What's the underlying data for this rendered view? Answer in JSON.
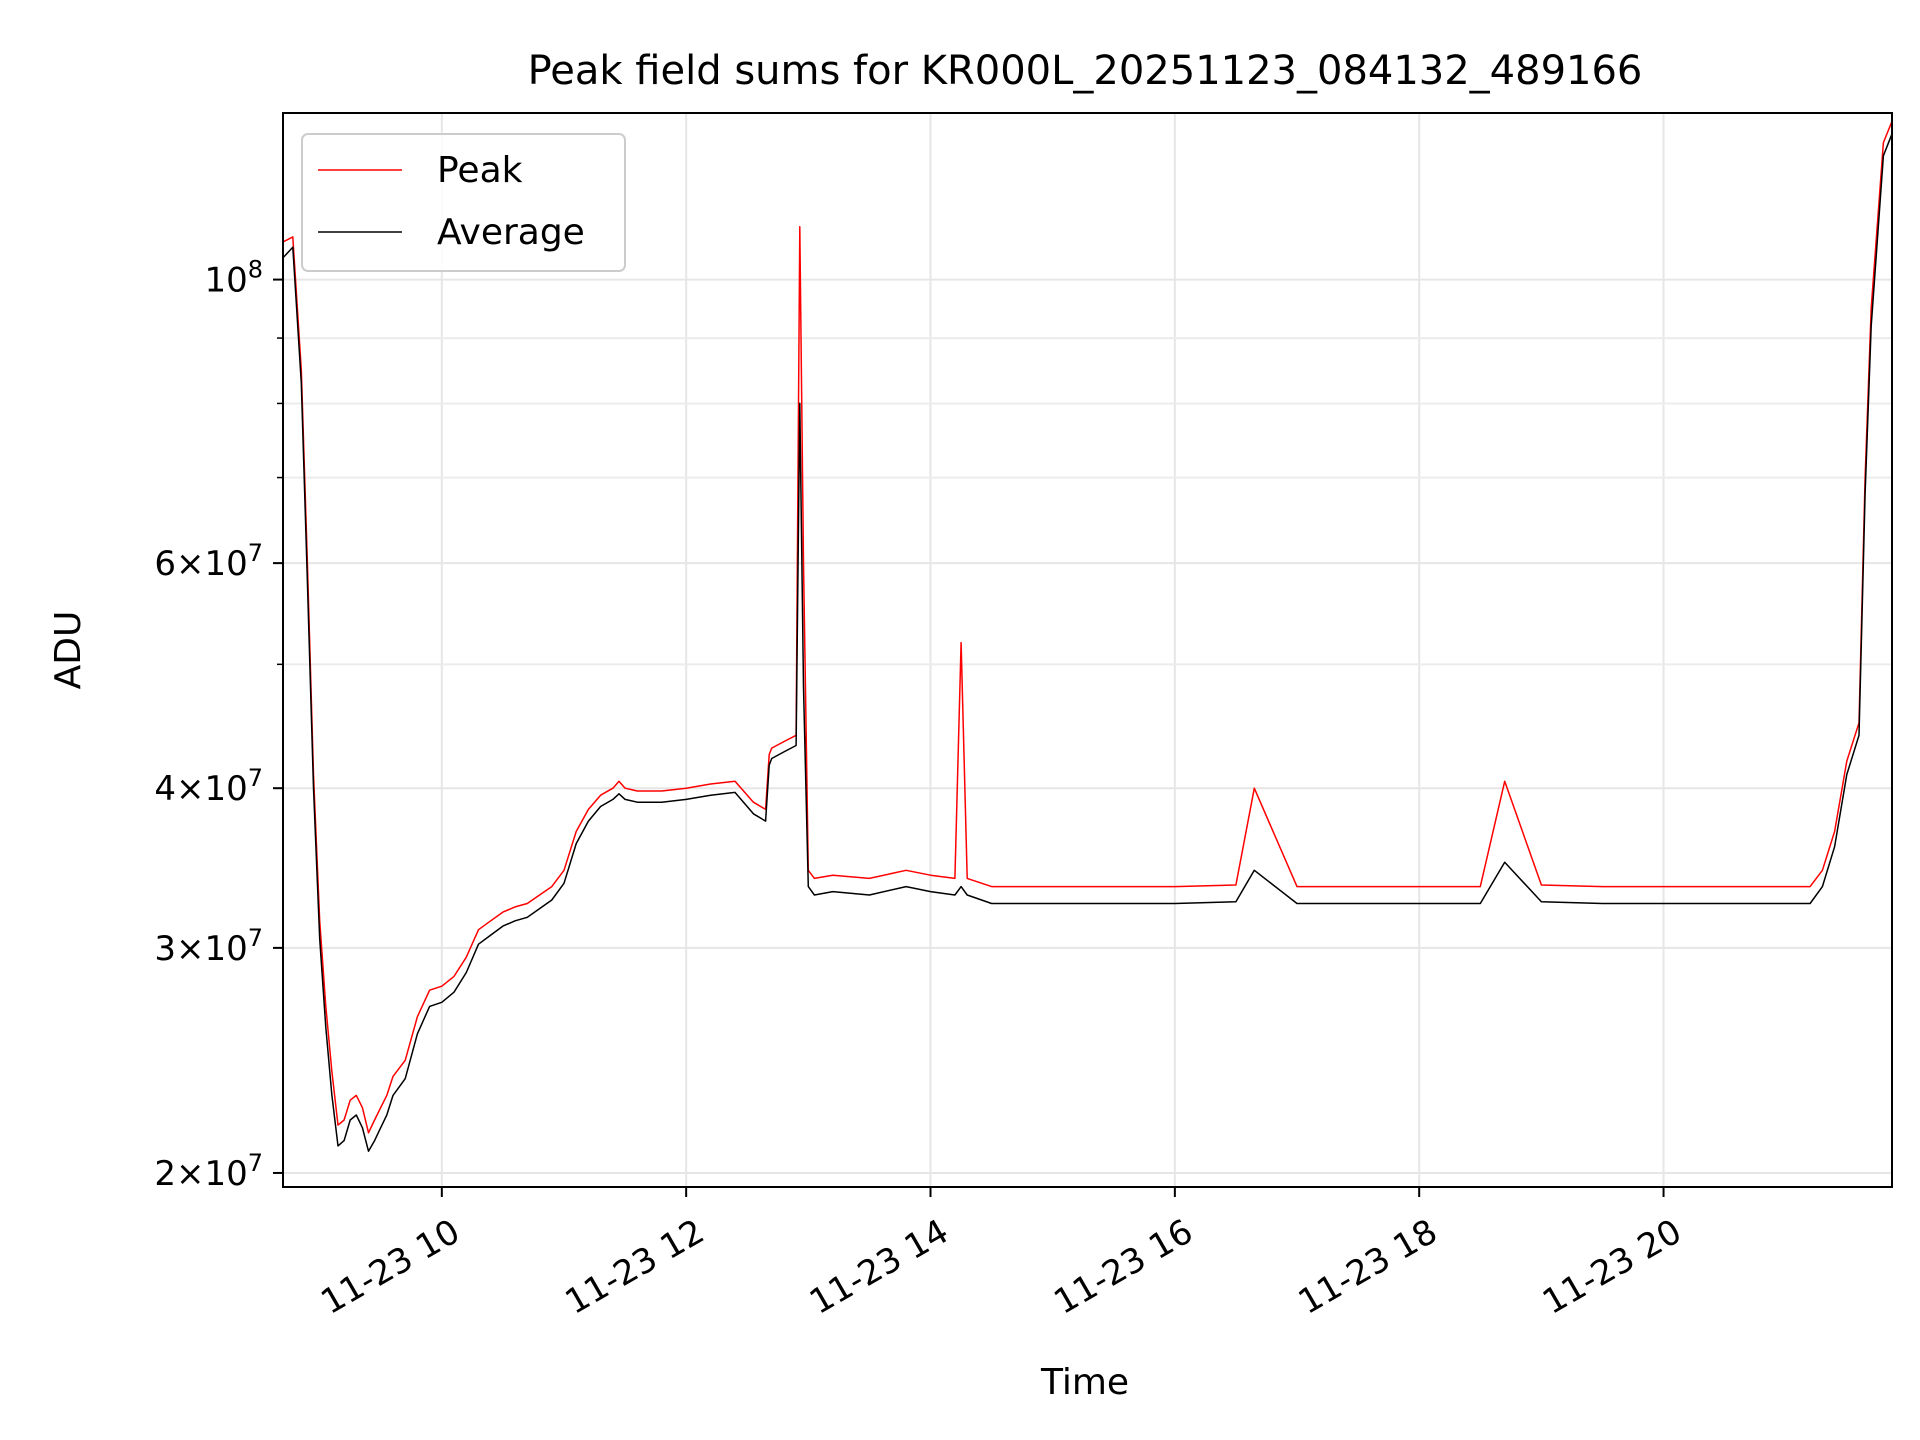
{
  "chart_data": {
    "type": "line",
    "title": "Peak field sums for KR000L_20251123_084132_489166",
    "xlabel": "Time",
    "ylabel": "ADU",
    "yscale": "log",
    "ylim": [
      19500000,
      135000000
    ],
    "xlim_hours": [
      8.7,
      21.87
    ],
    "grid": true,
    "legend_position": "upper left",
    "x_ticks": [
      {
        "hour": 10,
        "label": "11-23 10"
      },
      {
        "hour": 12,
        "label": "11-23 12"
      },
      {
        "hour": 14,
        "label": "11-23 14"
      },
      {
        "hour": 16,
        "label": "11-23 16"
      },
      {
        "hour": 18,
        "label": "11-23 18"
      },
      {
        "hour": 20,
        "label": "11-23 20"
      }
    ],
    "y_ticks": [
      {
        "value": 20000000,
        "mantissa": "2",
        "base": "10",
        "exp": "7"
      },
      {
        "value": 30000000,
        "mantissa": "3",
        "base": "10",
        "exp": "7"
      },
      {
        "value": 40000000,
        "mantissa": "4",
        "base": "10",
        "exp": "7"
      },
      {
        "value": 60000000,
        "mantissa": "6",
        "base": "10",
        "exp": "7"
      },
      {
        "value": 100000000,
        "mantissa": "",
        "base": "10",
        "exp": "8"
      }
    ],
    "y_minor_ticks": [
      50000000,
      70000000,
      80000000,
      90000000
    ],
    "series": [
      {
        "name": "Peak",
        "color": "#ff0000",
        "x_hours": [
          8.7,
          8.78,
          8.85,
          8.9,
          8.95,
          9.0,
          9.05,
          9.1,
          9.15,
          9.2,
          9.25,
          9.3,
          9.35,
          9.4,
          9.45,
          9.5,
          9.55,
          9.6,
          9.7,
          9.8,
          9.9,
          10.0,
          10.1,
          10.2,
          10.3,
          10.4,
          10.5,
          10.6,
          10.7,
          10.8,
          10.9,
          11.0,
          11.1,
          11.2,
          11.3,
          11.4,
          11.45,
          11.5,
          11.6,
          11.8,
          12.0,
          12.2,
          12.4,
          12.55,
          12.65,
          12.68,
          12.7,
          12.8,
          12.9,
          12.93,
          12.96,
          13.0,
          13.05,
          13.2,
          13.5,
          13.8,
          14.0,
          14.2,
          14.25,
          14.3,
          14.5,
          15.0,
          15.5,
          16.0,
          16.5,
          16.65,
          17.0,
          17.5,
          18.0,
          18.5,
          18.7,
          19.0,
          19.5,
          20.0,
          20.5,
          21.0,
          21.2,
          21.3,
          21.4,
          21.5,
          21.6,
          21.65,
          21.7,
          21.8,
          21.87
        ],
        "values": [
          107000000,
          108000000,
          85000000,
          60000000,
          41000000,
          31500000,
          27000000,
          24000000,
          21800000,
          22000000,
          22800000,
          23000000,
          22500000,
          21500000,
          22000000,
          22500000,
          23000000,
          23800000,
          24500000,
          26500000,
          27800000,
          28000000,
          28500000,
          29500000,
          31000000,
          31500000,
          32000000,
          32300000,
          32500000,
          33000000,
          33500000,
          34500000,
          37000000,
          38500000,
          39500000,
          40000000,
          40500000,
          40000000,
          39800000,
          39800000,
          40000000,
          40300000,
          40500000,
          39000000,
          38500000,
          42500000,
          43000000,
          43500000,
          44000000,
          110000000,
          60000000,
          34500000,
          34000000,
          34200000,
          34000000,
          34500000,
          34200000,
          34000000,
          52000000,
          34000000,
          33500000,
          33500000,
          33500000,
          33500000,
          33600000,
          40000000,
          33500000,
          33500000,
          33500000,
          33500000,
          40500000,
          33600000,
          33500000,
          33500000,
          33500000,
          33500000,
          33500000,
          34500000,
          37000000,
          42000000,
          45000000,
          70000000,
          95000000,
          128000000,
          133000000
        ]
      },
      {
        "name": "Average",
        "color": "#000000",
        "x_hours": [
          8.7,
          8.78,
          8.85,
          8.9,
          8.95,
          9.0,
          9.05,
          9.1,
          9.15,
          9.2,
          9.25,
          9.3,
          9.35,
          9.4,
          9.45,
          9.5,
          9.55,
          9.6,
          9.7,
          9.8,
          9.9,
          10.0,
          10.1,
          10.2,
          10.3,
          10.4,
          10.5,
          10.6,
          10.7,
          10.8,
          10.9,
          11.0,
          11.1,
          11.2,
          11.3,
          11.4,
          11.45,
          11.5,
          11.6,
          11.8,
          12.0,
          12.2,
          12.4,
          12.55,
          12.65,
          12.68,
          12.7,
          12.8,
          12.9,
          12.93,
          12.96,
          13.0,
          13.05,
          13.2,
          13.5,
          13.8,
          14.0,
          14.2,
          14.25,
          14.3,
          14.5,
          15.0,
          15.5,
          16.0,
          16.5,
          16.65,
          17.0,
          17.5,
          18.0,
          18.5,
          18.7,
          19.0,
          19.5,
          20.0,
          20.5,
          21.0,
          21.2,
          21.3,
          21.4,
          21.5,
          21.6,
          21.65,
          21.7,
          21.8,
          21.87
        ],
        "values": [
          104000000,
          106000000,
          83000000,
          58000000,
          40000000,
          30500000,
          26000000,
          23000000,
          21000000,
          21200000,
          22000000,
          22200000,
          21700000,
          20800000,
          21200000,
          21700000,
          22200000,
          23000000,
          23700000,
          25700000,
          27000000,
          27200000,
          27700000,
          28700000,
          30200000,
          30700000,
          31200000,
          31500000,
          31700000,
          32200000,
          32700000,
          33700000,
          36200000,
          37700000,
          38700000,
          39200000,
          39600000,
          39200000,
          39000000,
          39000000,
          39200000,
          39500000,
          39700000,
          38200000,
          37700000,
          41700000,
          42200000,
          42700000,
          43200000,
          80000000,
          48000000,
          33500000,
          33000000,
          33200000,
          33000000,
          33500000,
          33200000,
          33000000,
          33500000,
          33000000,
          32500000,
          32500000,
          32500000,
          32500000,
          32600000,
          34500000,
          32500000,
          32500000,
          32500000,
          32500000,
          35000000,
          32600000,
          32500000,
          32500000,
          32500000,
          32500000,
          32500000,
          33500000,
          36000000,
          41000000,
          44000000,
          68000000,
          92000000,
          125000000,
          130000000
        ]
      }
    ]
  }
}
